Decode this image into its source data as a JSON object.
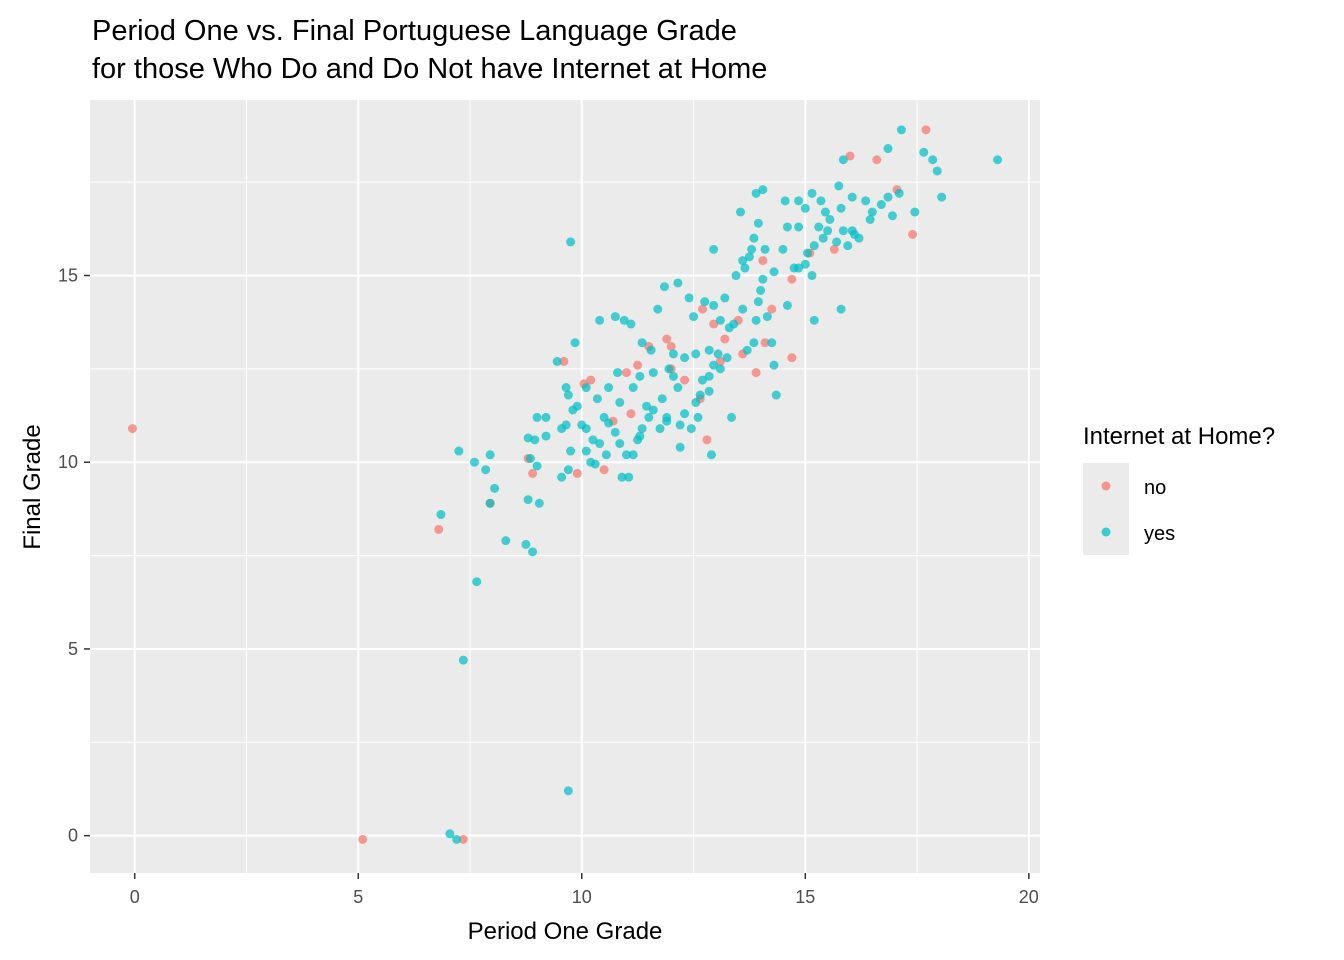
{
  "chart_data": {
    "type": "scatter",
    "title_lines": [
      "Period One vs. Final Portuguese Language Grade",
      "for those Who Do and Do Not have Internet at Home"
    ],
    "xlabel": "Period One Grade",
    "ylabel": "Final Grade",
    "xlim": [
      -1,
      20.25
    ],
    "ylim": [
      -1,
      19.7
    ],
    "x_ticks": [
      0,
      5,
      10,
      15,
      20
    ],
    "y_ticks": [
      0,
      5,
      10,
      15
    ],
    "grid": true,
    "legend": {
      "title": "Internet at Home?",
      "placement": "right",
      "entries": [
        "no",
        "yes"
      ]
    },
    "colors": {
      "no": "#F8766D",
      "yes": "#00BFC4"
    },
    "series": [
      {
        "name": "no",
        "points": [
          [
            -0.05,
            10.9
          ],
          [
            5.1,
            -0.1
          ],
          [
            7.35,
            -0.1
          ],
          [
            6.8,
            8.2
          ],
          [
            7.95,
            8.9
          ],
          [
            8.9,
            9.7
          ],
          [
            8.8,
            10.1
          ],
          [
            9.9,
            9.7
          ],
          [
            9.6,
            12.7
          ],
          [
            10.05,
            12.1
          ],
          [
            10.2,
            12.2
          ],
          [
            10.5,
            9.8
          ],
          [
            11.1,
            11.3
          ],
          [
            11.0,
            12.4
          ],
          [
            10.7,
            11.1
          ],
          [
            11.5,
            13.1
          ],
          [
            12.0,
            12.5
          ],
          [
            11.9,
            13.3
          ],
          [
            12.3,
            12.2
          ],
          [
            12.65,
            11.7
          ],
          [
            12.8,
            10.6
          ],
          [
            13.2,
            13.3
          ],
          [
            12.7,
            14.1
          ],
          [
            13.1,
            12.7
          ],
          [
            13.6,
            12.9
          ],
          [
            13.5,
            13.8
          ],
          [
            13.9,
            12.4
          ],
          [
            14.05,
            15.4
          ],
          [
            14.25,
            14.1
          ],
          [
            14.1,
            13.2
          ],
          [
            14.7,
            12.8
          ],
          [
            14.7,
            14.9
          ],
          [
            15.1,
            15.6
          ],
          [
            15.65,
            15.7
          ],
          [
            16.0,
            18.2
          ],
          [
            16.6,
            18.1
          ],
          [
            17.05,
            17.3
          ],
          [
            17.4,
            16.1
          ],
          [
            17.7,
            18.9
          ],
          [
            12.95,
            13.7
          ],
          [
            11.25,
            12.6
          ],
          [
            12.0,
            13.1
          ]
        ]
      },
      {
        "name": "yes",
        "points": [
          [
            7.05,
            0.05
          ],
          [
            7.2,
            -0.1
          ],
          [
            9.7,
            1.2
          ],
          [
            7.35,
            4.7
          ],
          [
            7.65,
            6.8
          ],
          [
            6.85,
            8.6
          ],
          [
            7.95,
            8.9
          ],
          [
            8.3,
            7.9
          ],
          [
            8.75,
            7.8
          ],
          [
            8.9,
            7.6
          ],
          [
            8.8,
            9.0
          ],
          [
            9.05,
            8.9
          ],
          [
            8.05,
            9.3
          ],
          [
            7.85,
            9.8
          ],
          [
            7.6,
            10.0
          ],
          [
            7.95,
            10.2
          ],
          [
            7.25,
            10.3
          ],
          [
            8.85,
            10.1
          ],
          [
            9.0,
            9.9
          ],
          [
            8.95,
            10.6
          ],
          [
            8.8,
            10.65
          ],
          [
            9.2,
            11.2
          ],
          [
            9.0,
            11.2
          ],
          [
            9.2,
            10.7
          ],
          [
            9.65,
            11.0
          ],
          [
            9.55,
            10.9
          ],
          [
            9.55,
            9.6
          ],
          [
            9.7,
            9.8
          ],
          [
            9.75,
            10.3
          ],
          [
            9.65,
            12.0
          ],
          [
            9.7,
            11.8
          ],
          [
            9.8,
            11.4
          ],
          [
            9.9,
            11.5
          ],
          [
            10.0,
            11.0
          ],
          [
            10.1,
            10.9
          ],
          [
            10.25,
            10.6
          ],
          [
            10.1,
            10.3
          ],
          [
            10.2,
            10.0
          ],
          [
            10.3,
            9.95
          ],
          [
            10.4,
            10.5
          ],
          [
            10.5,
            11.2
          ],
          [
            10.6,
            11.05
          ],
          [
            10.55,
            10.2
          ],
          [
            10.75,
            10.8
          ],
          [
            10.85,
            10.5
          ],
          [
            10.9,
            9.6
          ],
          [
            11.05,
            9.6
          ],
          [
            11.15,
            10.2
          ],
          [
            11.25,
            10.6
          ],
          [
            11.0,
            10.2
          ],
          [
            11.3,
            10.7
          ],
          [
            11.35,
            10.9
          ],
          [
            11.5,
            11.2
          ],
          [
            11.6,
            11.4
          ],
          [
            11.75,
            10.9
          ],
          [
            11.9,
            11.2
          ],
          [
            11.8,
            11.7
          ],
          [
            11.95,
            12.5
          ],
          [
            12.05,
            12.3
          ],
          [
            12.2,
            11.0
          ],
          [
            12.2,
            10.4
          ],
          [
            12.3,
            11.3
          ],
          [
            12.45,
            10.9
          ],
          [
            12.55,
            11.6
          ],
          [
            12.65,
            11.8
          ],
          [
            12.7,
            12.2
          ],
          [
            12.85,
            11.9
          ],
          [
            12.95,
            12.6
          ],
          [
            12.9,
            10.2
          ],
          [
            13.05,
            12.9
          ],
          [
            13.1,
            13.8
          ],
          [
            13.25,
            12.8
          ],
          [
            13.3,
            13.6
          ],
          [
            13.35,
            11.2
          ],
          [
            13.4,
            13.7
          ],
          [
            13.6,
            14.1
          ],
          [
            13.7,
            13.0
          ],
          [
            13.85,
            13.2
          ],
          [
            13.9,
            13.8
          ],
          [
            13.95,
            14.3
          ],
          [
            14.0,
            14.6
          ],
          [
            14.05,
            14.9
          ],
          [
            14.15,
            13.9
          ],
          [
            14.25,
            13.2
          ],
          [
            14.3,
            12.6
          ],
          [
            14.35,
            11.8
          ],
          [
            14.6,
            14.2
          ],
          [
            14.75,
            15.2
          ],
          [
            14.85,
            15.2
          ],
          [
            15.0,
            15.3
          ],
          [
            15.05,
            15.6
          ],
          [
            15.15,
            15.0
          ],
          [
            15.2,
            15.8
          ],
          [
            15.3,
            16.3
          ],
          [
            15.4,
            16.0
          ],
          [
            15.45,
            16.7
          ],
          [
            15.5,
            16.2
          ],
          [
            15.55,
            16.5
          ],
          [
            15.7,
            15.9
          ],
          [
            15.8,
            16.8
          ],
          [
            15.85,
            16.2
          ],
          [
            15.95,
            15.8
          ],
          [
            16.05,
            16.2
          ],
          [
            16.1,
            16.1
          ],
          [
            16.2,
            16.0
          ],
          [
            16.35,
            17.0
          ],
          [
            16.5,
            16.7
          ],
          [
            16.7,
            16.9
          ],
          [
            16.85,
            17.1
          ],
          [
            16.95,
            16.6
          ],
          [
            17.1,
            17.2
          ],
          [
            17.45,
            16.7
          ],
          [
            17.65,
            18.3
          ],
          [
            17.85,
            18.1
          ],
          [
            17.95,
            17.8
          ],
          [
            18.05,
            17.1
          ],
          [
            19.3,
            18.1
          ],
          [
            16.85,
            18.4
          ],
          [
            17.15,
            18.9
          ],
          [
            15.85,
            18.1
          ],
          [
            9.75,
            15.9
          ],
          [
            9.85,
            13.2
          ],
          [
            9.45,
            12.7
          ],
          [
            10.1,
            12.0
          ],
          [
            10.4,
            13.8
          ],
          [
            10.75,
            13.9
          ],
          [
            10.95,
            13.8
          ],
          [
            11.1,
            13.7
          ],
          [
            11.35,
            13.2
          ],
          [
            11.55,
            13.0
          ],
          [
            11.7,
            14.1
          ],
          [
            11.85,
            14.7
          ],
          [
            12.15,
            14.8
          ],
          [
            12.4,
            14.4
          ],
          [
            12.5,
            13.9
          ],
          [
            12.75,
            14.3
          ],
          [
            12.95,
            14.2
          ],
          [
            12.95,
            15.7
          ],
          [
            13.2,
            14.4
          ],
          [
            13.45,
            15.0
          ],
          [
            13.55,
            16.7
          ],
          [
            13.65,
            15.2
          ],
          [
            13.75,
            15.5
          ],
          [
            13.85,
            16.0
          ],
          [
            13.95,
            16.4
          ],
          [
            14.1,
            15.7
          ],
          [
            14.3,
            15.1
          ],
          [
            14.5,
            15.7
          ],
          [
            14.6,
            16.3
          ],
          [
            14.85,
            16.3
          ],
          [
            15.0,
            16.8
          ],
          [
            15.15,
            17.2
          ],
          [
            14.85,
            17.0
          ],
          [
            14.55,
            17.0
          ],
          [
            14.05,
            17.3
          ],
          [
            13.9,
            17.2
          ],
          [
            15.35,
            17.0
          ],
          [
            15.75,
            17.4
          ],
          [
            16.05,
            17.1
          ],
          [
            16.45,
            16.5
          ],
          [
            15.2,
            13.8
          ],
          [
            15.8,
            14.1
          ],
          [
            13.8,
            15.7
          ],
          [
            13.6,
            15.4
          ],
          [
            12.3,
            12.8
          ],
          [
            11.6,
            12.4
          ],
          [
            11.15,
            12.0
          ],
          [
            10.6,
            12.0
          ],
          [
            10.85,
            11.6
          ],
          [
            10.35,
            11.7
          ],
          [
            12.05,
            12.9
          ],
          [
            12.55,
            12.9
          ],
          [
            12.85,
            13.0
          ],
          [
            13.1,
            12.5
          ],
          [
            12.6,
            11.2
          ],
          [
            12.15,
            12.0
          ],
          [
            11.45,
            11.5
          ],
          [
            12.85,
            12.3
          ],
          [
            11.9,
            11.1
          ],
          [
            11.3,
            12.3
          ],
          [
            10.8,
            12.4
          ]
        ]
      }
    ]
  }
}
